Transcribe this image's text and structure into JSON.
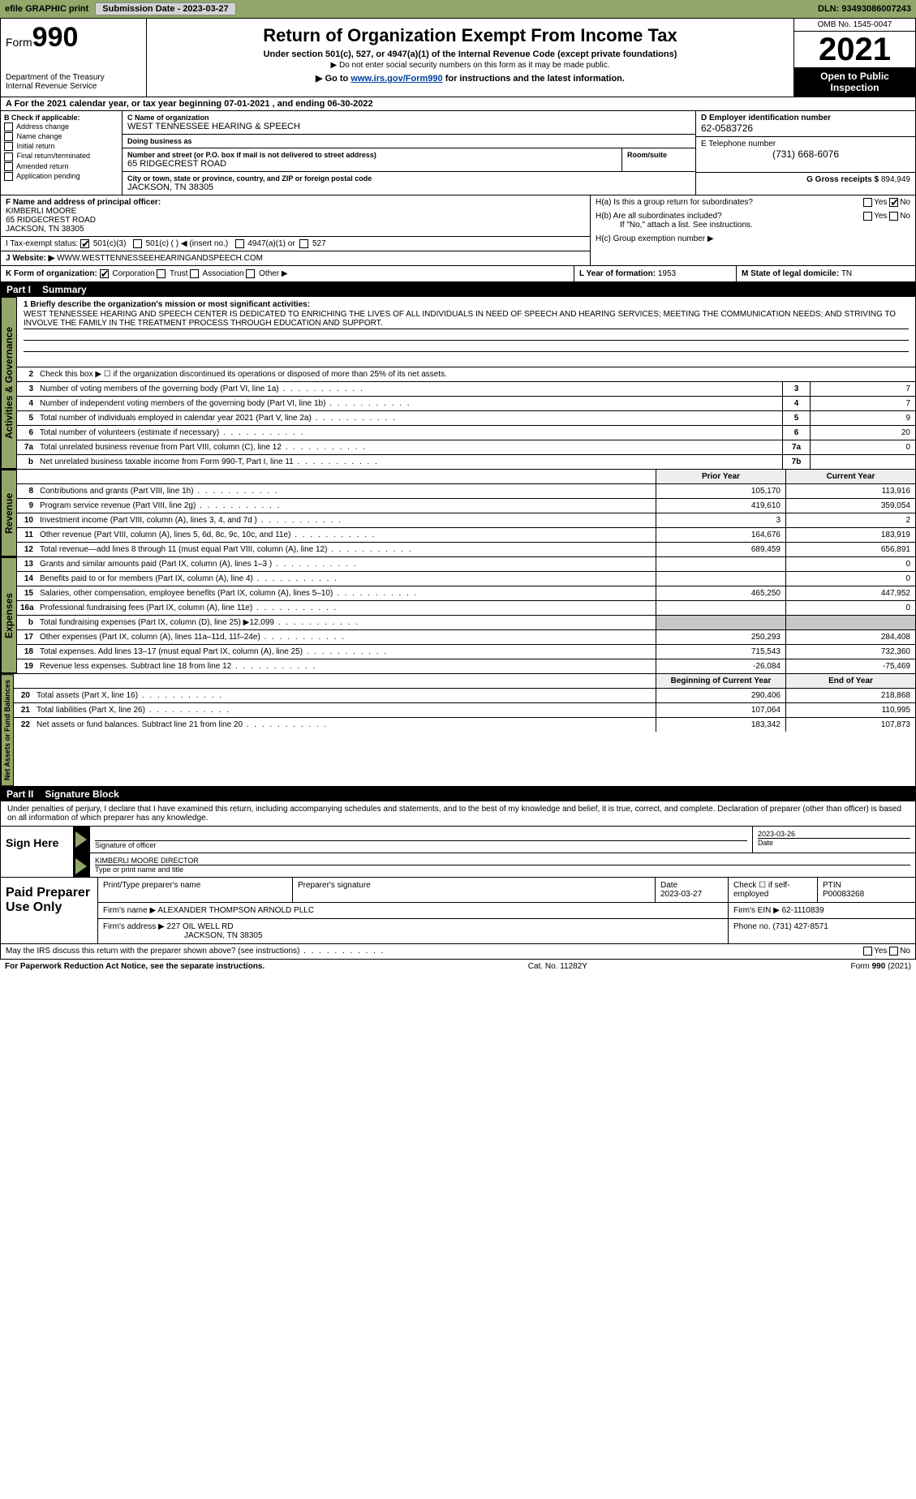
{
  "topbar": {
    "efile_label": "efile GRAPHIC print",
    "submission_label": "Submission Date - 2023-03-27",
    "dln_label": "DLN: 93493086007243"
  },
  "header": {
    "form_prefix": "Form",
    "form_number": "990",
    "title": "Return of Organization Exempt From Income Tax",
    "subtitle": "Under section 501(c), 527, or 4947(a)(1) of the Internal Revenue Code (except private foundations)",
    "ssn_note": "▶ Do not enter social security numbers on this form as it may be made public.",
    "goto_pre": "▶ Go to ",
    "goto_link": "www.irs.gov/Form990",
    "goto_post": " for instructions and the latest information.",
    "dept": "Department of the Treasury",
    "irs": "Internal Revenue Service",
    "omb": "OMB No. 1545-0047",
    "year": "2021",
    "open": "Open to Public Inspection"
  },
  "period": {
    "text_pre": "A For the 2021 calendar year, or tax year beginning ",
    "begin": "07-01-2021",
    "text_mid": "   , and ending ",
    "end": "06-30-2022"
  },
  "colB": {
    "hdr": "B Check if applicable:",
    "opts": [
      "Address change",
      "Name change",
      "Initial return",
      "Final return/terminated",
      "Amended return",
      "Application pending"
    ]
  },
  "colC": {
    "name_lab": "C Name of organization",
    "name": "WEST TENNESSEE HEARING & SPEECH",
    "dba_lab": "Doing business as",
    "dba": "",
    "addr_lab": "Number and street (or P.O. box if mail is not delivered to street address)",
    "addr": "65 RIDGECREST ROAD",
    "room_lab": "Room/suite",
    "city_lab": "City or town, state or province, country, and ZIP or foreign postal code",
    "city": "JACKSON, TN  38305"
  },
  "colD": {
    "ein_lab": "D Employer identification number",
    "ein": "62-0583726",
    "tel_lab": "E Telephone number",
    "tel": "(731) 668-6076",
    "gross_lab": "G Gross receipts $ ",
    "gross": "894,949"
  },
  "F": {
    "lab": "F Name and address of principal officer:",
    "name": "KIMBERLI MOORE",
    "addr1": "65 RIDGECREST ROAD",
    "addr2": "JACKSON, TN  38305"
  },
  "I": {
    "lab": "I   Tax-exempt status:",
    "o1": "501(c)(3)",
    "o2": "501(c) (   ) ◀ (insert no.)",
    "o3": "4947(a)(1) or",
    "o4": "527"
  },
  "J": {
    "lab": "J   Website: ▶",
    "val": " WWW.WESTTENNESSEEHEARINGANDSPEECH.COM"
  },
  "H": {
    "a": "H(a)  Is this a group return for subordinates?",
    "b": "H(b)  Are all subordinates included?",
    "b_note": "If \"No,\" attach a list. See instructions.",
    "c": "H(c)  Group exemption number ▶",
    "yes": "Yes",
    "no": "No"
  },
  "K": {
    "lab": "K Form of organization:",
    "o1": "Corporation",
    "o2": "Trust",
    "o3": "Association",
    "o4": "Other ▶"
  },
  "L": {
    "lab": "L Year of formation: ",
    "val": "1953"
  },
  "M": {
    "lab": "M State of legal domicile: ",
    "val": "TN"
  },
  "part1": {
    "tag": "Part I",
    "title": "Summary",
    "vtab": "Activities & Governance",
    "line1_lab": "1  Briefly describe the organization's mission or most significant activities:",
    "mission": "WEST TENNESSEE HEARING AND SPEECH CENTER IS DEDICATED TO ENRICHING THE LIVES OF ALL INDIVIDUALS IN NEED OF SPEECH AND HEARING SERVICES; MEETING THE COMMUNICATION NEEDS; AND STRIVING TO INVOLVE THE FAMILY IN THE TREATMENT PROCESS THROUGH EDUCATION AND SUPPORT.",
    "line2": "Check this box ▶ ☐ if the organization discontinued its operations or disposed of more than 25% of its net assets.",
    "rows_gov": [
      {
        "n": "3",
        "t": "Number of voting members of the governing body (Part VI, line 1a)",
        "box": "3",
        "v": "7"
      },
      {
        "n": "4",
        "t": "Number of independent voting members of the governing body (Part VI, line 1b)",
        "box": "4",
        "v": "7"
      },
      {
        "n": "5",
        "t": "Total number of individuals employed in calendar year 2021 (Part V, line 2a)",
        "box": "5",
        "v": "9"
      },
      {
        "n": "6",
        "t": "Total number of volunteers (estimate if necessary)",
        "box": "6",
        "v": "20"
      },
      {
        "n": "7a",
        "t": "Total unrelated business revenue from Part VIII, column (C), line 12",
        "box": "7a",
        "v": "0"
      },
      {
        "n": "b",
        "t": "Net unrelated business taxable income from Form 990-T, Part I, line 11",
        "box": "7b",
        "v": ""
      }
    ],
    "vtab_rev": "Revenue",
    "hdr_prior": "Prior Year",
    "hdr_curr": "Current Year",
    "rows_rev": [
      {
        "n": "8",
        "t": "Contributions and grants (Part VIII, line 1h)",
        "p": "105,170",
        "c": "113,916"
      },
      {
        "n": "9",
        "t": "Program service revenue (Part VIII, line 2g)",
        "p": "419,610",
        "c": "359,054"
      },
      {
        "n": "10",
        "t": "Investment income (Part VIII, column (A), lines 3, 4, and 7d )",
        "p": "3",
        "c": "2"
      },
      {
        "n": "11",
        "t": "Other revenue (Part VIII, column (A), lines 5, 6d, 8c, 9c, 10c, and 11e)",
        "p": "164,676",
        "c": "183,919"
      },
      {
        "n": "12",
        "t": "Total revenue—add lines 8 through 11 (must equal Part VIII, column (A), line 12)",
        "p": "689,459",
        "c": "656,891"
      }
    ],
    "vtab_exp": "Expenses",
    "rows_exp": [
      {
        "n": "13",
        "t": "Grants and similar amounts paid (Part IX, column (A), lines 1–3 )",
        "p": "",
        "c": "0"
      },
      {
        "n": "14",
        "t": "Benefits paid to or for members (Part IX, column (A), line 4)",
        "p": "",
        "c": "0"
      },
      {
        "n": "15",
        "t": "Salaries, other compensation, employee benefits (Part IX, column (A), lines 5–10)",
        "p": "465,250",
        "c": "447,952"
      },
      {
        "n": "16a",
        "t": "Professional fundraising fees (Part IX, column (A), line 11e)",
        "p": "",
        "c": "0"
      },
      {
        "n": "b",
        "t": "Total fundraising expenses (Part IX, column (D), line 25) ▶12,099",
        "p": "GRAY",
        "c": "GRAY"
      },
      {
        "n": "17",
        "t": "Other expenses (Part IX, column (A), lines 11a–11d, 11f–24e)",
        "p": "250,293",
        "c": "284,408"
      },
      {
        "n": "18",
        "t": "Total expenses. Add lines 13–17 (must equal Part IX, column (A), line 25)",
        "p": "715,543",
        "c": "732,360"
      },
      {
        "n": "19",
        "t": "Revenue less expenses. Subtract line 18 from line 12",
        "p": "-26,084",
        "c": "-75,469"
      }
    ],
    "vtab_net": "Net Assets or Fund Balances",
    "hdr_beg": "Beginning of Current Year",
    "hdr_end": "End of Year",
    "rows_net": [
      {
        "n": "20",
        "t": "Total assets (Part X, line 16)",
        "p": "290,406",
        "c": "218,868"
      },
      {
        "n": "21",
        "t": "Total liabilities (Part X, line 26)",
        "p": "107,064",
        "c": "110,995"
      },
      {
        "n": "22",
        "t": "Net assets or fund balances. Subtract line 21 from line 20",
        "p": "183,342",
        "c": "107,873"
      }
    ]
  },
  "part2": {
    "tag": "Part II",
    "title": "Signature Block",
    "intro": "Under penalties of perjury, I declare that I have examined this return, including accompanying schedules and statements, and to the best of my knowledge and belief, it is true, correct, and complete. Declaration of preparer (other than officer) is based on all information of which preparer has any knowledge."
  },
  "sign": {
    "left": "Sign Here",
    "sig_lab": "Signature of officer",
    "date_lab": "Date",
    "date": "2023-03-26",
    "name": "KIMBERLI MOORE  DIRECTOR",
    "name_lab": "Type or print name and title"
  },
  "paid": {
    "left": "Paid Preparer Use Only",
    "h1": "Print/Type preparer's name",
    "h2": "Preparer's signature",
    "h3": "Date",
    "date": "2023-03-27",
    "h4": "Check ☐ if self-employed",
    "h5": "PTIN",
    "ptin": "P00083268",
    "firm_lab": "Firm's name    ▶",
    "firm": " ALEXANDER THOMPSON ARNOLD PLLC",
    "ein_lab": "Firm's EIN ▶ ",
    "ein": "62-1110839",
    "addr_lab": "Firm's address ▶",
    "addr1": " 227 OIL WELL RD",
    "addr2": "JACKSON, TN  38305",
    "phone_lab": "Phone no. ",
    "phone": "(731) 427-8571"
  },
  "discuss": {
    "q": "May the IRS discuss this return with the preparer shown above? (see instructions)",
    "yes": "Yes",
    "no": "No"
  },
  "footer": {
    "left": "For Paperwork Reduction Act Notice, see the separate instructions.",
    "mid": "Cat. No. 11282Y",
    "right": "Form 990 (2021)"
  },
  "colors": {
    "accent": "#92a769",
    "link": "#0040a0"
  }
}
